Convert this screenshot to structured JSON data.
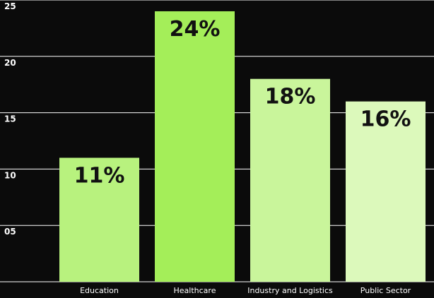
{
  "chart_data": {
    "type": "bar",
    "categories": [
      "Education",
      "Healthcare",
      "Industry and Logistics",
      "Public Sector"
    ],
    "values": [
      11,
      24,
      18,
      16
    ],
    "value_labels": [
      "11%",
      "24%",
      "18%",
      "16%"
    ],
    "ylim": [
      0,
      25
    ],
    "yticks": [
      5,
      10,
      15,
      20,
      25
    ],
    "ytick_labels": [
      "05",
      "10",
      "15",
      "20",
      "25"
    ],
    "grid": true,
    "bar_colors": [
      "#b8f27e",
      "#a4ee59",
      "#c9f59b",
      "#dcf9bb"
    ],
    "background": "#0b0b0b",
    "grid_color": "#ffffff"
  }
}
